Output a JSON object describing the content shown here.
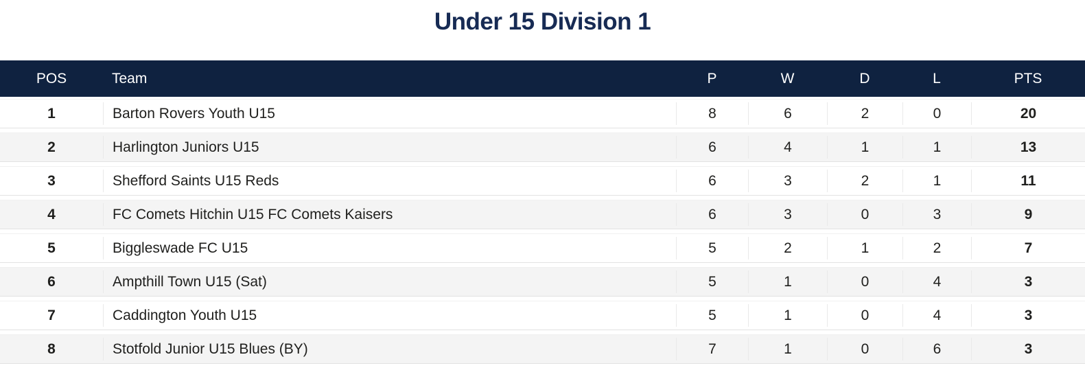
{
  "title": "Under 15 Division 1",
  "colors": {
    "header_bg": "#0f2240",
    "header_text": "#ffffff",
    "title_text": "#172b54",
    "row_alt_bg": "#f4f4f4",
    "divider": "#e9e9e9"
  },
  "table": {
    "header": {
      "pos": "POS",
      "team": "Team",
      "p": "P",
      "w": "W",
      "d": "D",
      "l": "L",
      "pts": "PTS"
    },
    "rows": [
      {
        "pos": "1",
        "team": "Barton Rovers Youth U15",
        "p": "8",
        "w": "6",
        "d": "2",
        "l": "0",
        "pts": "20"
      },
      {
        "pos": "2",
        "team": "Harlington Juniors U15",
        "p": "6",
        "w": "4",
        "d": "1",
        "l": "1",
        "pts": "13"
      },
      {
        "pos": "3",
        "team": "Shefford Saints U15 Reds",
        "p": "6",
        "w": "3",
        "d": "2",
        "l": "1",
        "pts": "11"
      },
      {
        "pos": "4",
        "team": "FC Comets Hitchin U15 FC Comets Kaisers",
        "p": "6",
        "w": "3",
        "d": "0",
        "l": "3",
        "pts": "9"
      },
      {
        "pos": "5",
        "team": "Biggleswade FC U15",
        "p": "5",
        "w": "2",
        "d": "1",
        "l": "2",
        "pts": "7"
      },
      {
        "pos": "6",
        "team": "Ampthill Town U15 (Sat)",
        "p": "5",
        "w": "1",
        "d": "0",
        "l": "4",
        "pts": "3"
      },
      {
        "pos": "7",
        "team": "Caddington Youth U15",
        "p": "5",
        "w": "1",
        "d": "0",
        "l": "4",
        "pts": "3"
      },
      {
        "pos": "8",
        "team": "Stotfold Junior U15 Blues (BY)",
        "p": "7",
        "w": "1",
        "d": "0",
        "l": "6",
        "pts": "3"
      }
    ]
  }
}
